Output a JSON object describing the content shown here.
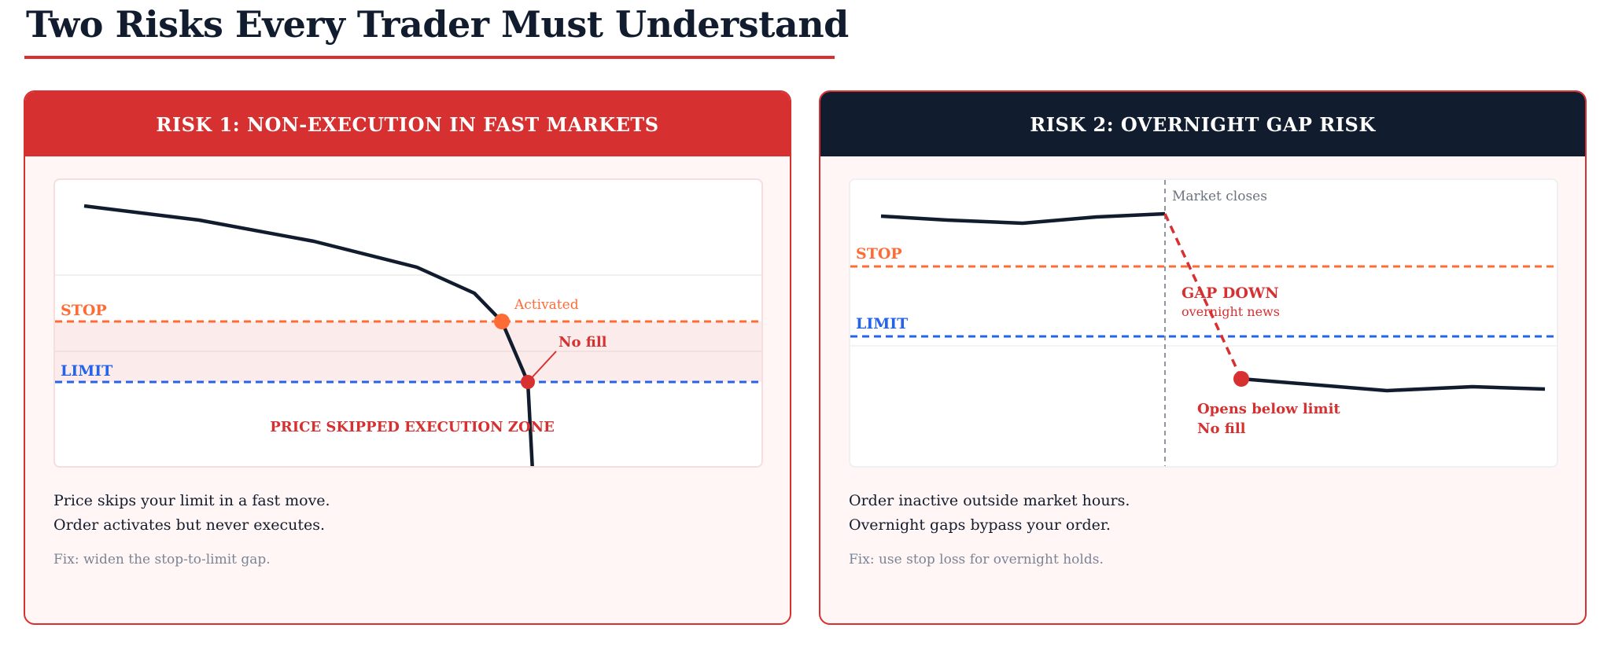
{
  "page": {
    "title": "Two Risks Every Trader Must Understand"
  },
  "colors": {
    "accent_red": "#d63031",
    "navy": "#111c2e",
    "stop_orange": "#ff6b35",
    "limit_blue": "#2563eb",
    "muted_gray": "#7b8494"
  },
  "risk1": {
    "header": "RISK 1: NON-EXECUTION IN FAST MARKETS",
    "chart": {
      "stop_label": "STOP",
      "limit_label": "LIMIT",
      "activated_label": "Activated",
      "no_fill_label": "No fill",
      "zone_label": "PRICE SKIPPED EXECUTION ZONE"
    },
    "description": [
      "Price skips your limit in a fast move.",
      "Order activates but never executes."
    ],
    "fix": "Fix: widen the stop-to-limit gap."
  },
  "risk2": {
    "header": "RISK 2: OVERNIGHT GAP RISK",
    "chart": {
      "market_closes_label": "Market closes",
      "stop_label": "STOP",
      "limit_label": "LIMIT",
      "gap_label": "GAP DOWN",
      "gap_sublabel": "overnight news",
      "opens_label": "Opens below limit",
      "no_fill_label": "No fill"
    },
    "description": [
      "Order inactive outside market hours.",
      "Overnight gaps bypass your order."
    ],
    "fix": "Fix: use stop loss for overnight holds."
  }
}
